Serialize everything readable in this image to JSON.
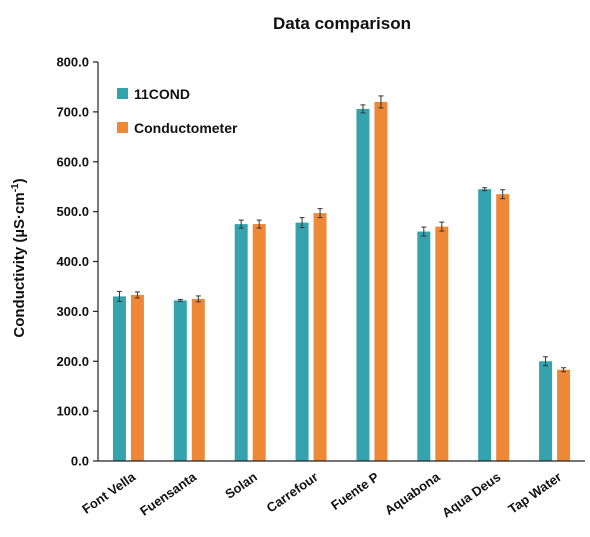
{
  "chart_data": {
    "type": "bar",
    "title": "Data comparison",
    "ylabel": "Conductivity (µS·cm",
    "ylabel_sup": "-1",
    "ylabel_close": ")",
    "ylim": [
      0,
      800
    ],
    "ytick_step": 100,
    "ytick_labels": [
      "0.0",
      "100.0",
      "200.0",
      "300.0",
      "400.0",
      "500.0",
      "600.0",
      "700.0",
      "800.0"
    ],
    "grid": false,
    "legend_position": "top-left",
    "categories": [
      "Font Vella",
      "Fuensanta",
      "Solan",
      "Carrefour",
      "Fuente P",
      "Aquabona",
      "Aqua Deus",
      "Tap Water"
    ],
    "series": [
      {
        "name": "11COND",
        "color": "#35a3ad",
        "values": [
          330,
          322,
          475,
          478,
          706,
          460,
          545,
          200
        ],
        "errors": [
          10,
          2,
          8,
          10,
          8,
          9,
          3,
          9
        ]
      },
      {
        "name": "Conductometer",
        "color": "#ee8837",
        "values": [
          333,
          325,
          475,
          497,
          720,
          470,
          535,
          183
        ],
        "errors": [
          6,
          6,
          8,
          9,
          12,
          9,
          9,
          4
        ]
      }
    ]
  }
}
